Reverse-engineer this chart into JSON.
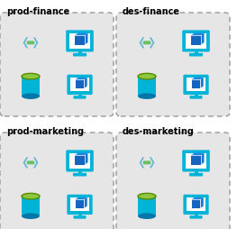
{
  "panels": [
    {
      "label": "prod-finance",
      "col": 0,
      "row": 0
    },
    {
      "label": "des-finance",
      "col": 1,
      "row": 0
    },
    {
      "label": "prod-marketing",
      "col": 0,
      "row": 1
    },
    {
      "label": "des-marketing",
      "col": 1,
      "row": 1
    }
  ],
  "bg_color": "#ffffff",
  "panel_bg": "#e6e6e6",
  "panel_border": "#999999",
  "label_color": "#000000",
  "label_fontsize": 7.0,
  "label_fontweight": "bold",
  "cyan": "#00b4d8",
  "cyan_dark": "#0077a8",
  "cyan_mid": "#0096c7",
  "blue_cube": "#1565c0",
  "blue_cube_light": "#1e88e5",
  "green": "#8dc63f",
  "green_dark": "#5a8a00",
  "chevron_color": "#5bb8d4",
  "dot_color": "#6dbf67",
  "white": "#ffffff"
}
